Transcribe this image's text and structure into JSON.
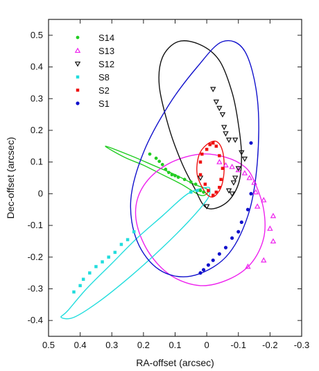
{
  "chart_data": {
    "type": "scatter",
    "title": "",
    "xlabel": "RA-offset (arcsec)",
    "ylabel": "Dec-offset (arcsec)",
    "xlim": [
      0.5,
      -0.3
    ],
    "ylim": [
      -0.45,
      0.55
    ],
    "x_inverted": true,
    "xticks": [
      0.5,
      0.4,
      0.3,
      0.2,
      0.1,
      0,
      -0.1,
      -0.2,
      -0.3
    ],
    "xtick_labels": [
      "0.5",
      "0.4",
      "0.3",
      "0.2",
      "0.1",
      "0",
      "-0.1",
      "-0.2",
      "-0.3"
    ],
    "yticks": [
      -0.4,
      -0.3,
      -0.2,
      -0.1,
      0,
      0.1,
      0.2,
      0.3,
      0.4,
      0.5
    ],
    "ytick_labels": [
      "-0.4",
      "-0.3",
      "-0.2",
      "-0.1",
      "0",
      "0.1",
      "0.2",
      "0.3",
      "0.4",
      "0.5"
    ],
    "grid": false,
    "legend_position": "top-left",
    "series": [
      {
        "name": "S14",
        "color": "#22cc22",
        "marker": "dot",
        "points": [
          [
            0.18,
            0.125
          ],
          [
            0.16,
            0.112
          ],
          [
            0.15,
            0.102
          ],
          [
            0.14,
            0.092
          ],
          [
            0.13,
            0.077
          ],
          [
            0.12,
            0.067
          ],
          [
            0.11,
            0.06
          ],
          [
            0.1,
            0.057
          ],
          [
            0.09,
            0.052
          ],
          [
            0.07,
            0.045
          ],
          [
            0.05,
            0.037
          ],
          [
            0.035,
            0.03
          ],
          [
            0.02,
            0.01
          ],
          [
            0.01,
            0.005
          ]
        ],
        "orbit": [
          [
            0.32,
            0.15
          ],
          [
            0.24,
            0.12
          ],
          [
            0.17,
            0.09
          ],
          [
            0.1,
            0.06
          ],
          [
            0.04,
            0.03
          ],
          [
            0.0,
            0.015
          ],
          [
            -0.005,
            0.005
          ],
          [
            0.02,
            -0.005
          ],
          [
            0.08,
            0.03
          ],
          [
            0.14,
            0.06
          ],
          [
            0.2,
            0.09
          ],
          [
            0.26,
            0.115
          ],
          [
            0.32,
            0.15
          ]
        ]
      },
      {
        "name": "S13",
        "color": "#ee22ee",
        "marker": "triangle-up",
        "points": [
          [
            -0.04,
            0.1
          ],
          [
            -0.06,
            0.09
          ],
          [
            -0.08,
            0.085
          ],
          [
            -0.1,
            0.075
          ],
          [
            -0.12,
            0.065
          ],
          [
            -0.135,
            0.05
          ],
          [
            -0.15,
            0.035
          ],
          [
            -0.155,
            0.005
          ],
          [
            -0.16,
            -0.04
          ],
          [
            -0.18,
            -0.02
          ],
          [
            -0.21,
            -0.07
          ],
          [
            -0.2,
            -0.11
          ],
          [
            -0.21,
            -0.15
          ],
          [
            -0.18,
            -0.21
          ],
          [
            -0.13,
            -0.23
          ]
        ],
        "orbit": [
          [
            -0.15,
            0.04
          ],
          [
            -0.18,
            -0.05
          ],
          [
            -0.18,
            -0.14
          ],
          [
            -0.14,
            -0.22
          ],
          [
            -0.07,
            -0.27
          ],
          [
            0.02,
            -0.29
          ],
          [
            0.11,
            -0.26
          ],
          [
            0.18,
            -0.19
          ],
          [
            0.22,
            -0.1
          ],
          [
            0.22,
            -0.02
          ],
          [
            0.18,
            0.05
          ],
          [
            0.11,
            0.1
          ],
          [
            0.02,
            0.125
          ],
          [
            -0.06,
            0.115
          ],
          [
            -0.12,
            0.085
          ],
          [
            -0.15,
            0.04
          ]
        ]
      },
      {
        "name": "S12",
        "color": "#111111",
        "marker": "triangle-down",
        "points": [
          [
            -0.02,
            0.33
          ],
          [
            -0.03,
            0.29
          ],
          [
            -0.04,
            0.27
          ],
          [
            -0.05,
            0.25
          ],
          [
            -0.055,
            0.21
          ],
          [
            -0.06,
            0.19
          ],
          [
            -0.07,
            0.17
          ],
          [
            -0.09,
            0.17
          ],
          [
            -0.11,
            0.13
          ],
          [
            -0.12,
            0.11
          ],
          [
            -0.1,
            0.08
          ],
          [
            -0.09,
            0.05
          ],
          [
            -0.085,
            0.035
          ],
          [
            -0.07,
            0.01
          ],
          [
            -0.08,
            0.0
          ],
          [
            0.0,
            -0.04
          ],
          [
            0.02,
            0.05
          ]
        ],
        "orbit": [
          [
            0.0,
            -0.045
          ],
          [
            -0.06,
            -0.03
          ],
          [
            -0.1,
            0.03
          ],
          [
            -0.11,
            0.12
          ],
          [
            -0.1,
            0.22
          ],
          [
            -0.08,
            0.32
          ],
          [
            -0.04,
            0.42
          ],
          [
            0.02,
            0.47
          ],
          [
            0.09,
            0.48
          ],
          [
            0.14,
            0.43
          ],
          [
            0.15,
            0.34
          ],
          [
            0.12,
            0.21
          ],
          [
            0.08,
            0.1
          ],
          [
            0.04,
            0.02
          ],
          [
            0.0,
            -0.045
          ]
        ]
      },
      {
        "name": "S8",
        "color": "#22dddd",
        "marker": "square",
        "points": [
          [
            0.42,
            -0.31
          ],
          [
            0.4,
            -0.29
          ],
          [
            0.39,
            -0.27
          ],
          [
            0.37,
            -0.25
          ],
          [
            0.35,
            -0.23
          ],
          [
            0.33,
            -0.215
          ],
          [
            0.31,
            -0.2
          ],
          [
            0.29,
            -0.185
          ],
          [
            0.27,
            -0.16
          ],
          [
            0.25,
            -0.145
          ],
          [
            0.23,
            -0.12
          ],
          [
            0.05,
            0.005
          ],
          [
            0.03,
            0.01
          ]
        ],
        "orbit": [
          [
            0.46,
            -0.39
          ],
          [
            0.44,
            -0.37
          ],
          [
            0.38,
            -0.3
          ],
          [
            0.3,
            -0.22
          ],
          [
            0.22,
            -0.14
          ],
          [
            0.14,
            -0.07
          ],
          [
            0.06,
            0.0
          ],
          [
            0.0,
            0.02
          ],
          [
            -0.01,
            0.01
          ],
          [
            0.0,
            -0.02
          ],
          [
            0.06,
            -0.09
          ],
          [
            0.14,
            -0.17
          ],
          [
            0.24,
            -0.26
          ],
          [
            0.34,
            -0.34
          ],
          [
            0.42,
            -0.39
          ],
          [
            0.46,
            -0.39
          ]
        ]
      },
      {
        "name": "S2",
        "color": "#ee1111",
        "marker": "square",
        "points": [
          [
            0.02,
            0.06
          ],
          [
            0.02,
            0.1
          ],
          [
            0.015,
            0.125
          ],
          [
            0.0,
            0.14
          ],
          [
            -0.01,
            0.155
          ],
          [
            -0.02,
            0.16
          ],
          [
            -0.03,
            0.15
          ],
          [
            -0.04,
            0.12
          ],
          [
            -0.05,
            0.08
          ],
          [
            -0.045,
            0.045
          ],
          [
            -0.04,
            0.02
          ],
          [
            -0.03,
            0.005
          ],
          [
            -0.02,
            -0.005
          ],
          [
            -0.005,
            0.01
          ],
          [
            0.005,
            0.03
          ]
        ],
        "orbit": [
          [
            0.005,
            0.005
          ],
          [
            0.03,
            0.06
          ],
          [
            0.025,
            0.12
          ],
          [
            0.0,
            0.155
          ],
          [
            -0.03,
            0.165
          ],
          [
            -0.05,
            0.135
          ],
          [
            -0.055,
            0.075
          ],
          [
            -0.045,
            0.02
          ],
          [
            -0.02,
            -0.01
          ],
          [
            0.005,
            0.005
          ]
        ]
      },
      {
        "name": "S1",
        "color": "#1111cc",
        "marker": "circle-open",
        "points": [
          [
            -0.14,
            0.16
          ],
          [
            -0.14,
            0.0
          ],
          [
            -0.13,
            -0.05
          ],
          [
            -0.11,
            -0.09
          ],
          [
            -0.1,
            -0.12
          ],
          [
            -0.08,
            -0.14
          ],
          [
            -0.06,
            -0.17
          ],
          [
            -0.04,
            -0.19
          ],
          [
            -0.02,
            -0.21
          ],
          [
            -0.005,
            -0.225
          ],
          [
            0.01,
            -0.24
          ],
          [
            0.02,
            -0.25
          ]
        ],
        "orbit": [
          [
            0.05,
            -0.26
          ],
          [
            0.15,
            -0.24
          ],
          [
            0.22,
            -0.15
          ],
          [
            0.24,
            -0.02
          ],
          [
            0.2,
            0.13
          ],
          [
            0.12,
            0.28
          ],
          [
            0.03,
            0.4
          ],
          [
            -0.05,
            0.48
          ],
          [
            -0.12,
            0.45
          ],
          [
            -0.16,
            0.3
          ],
          [
            -0.16,
            0.1
          ],
          [
            -0.13,
            -0.07
          ],
          [
            -0.06,
            -0.2
          ],
          [
            0.05,
            -0.26
          ]
        ]
      }
    ]
  }
}
